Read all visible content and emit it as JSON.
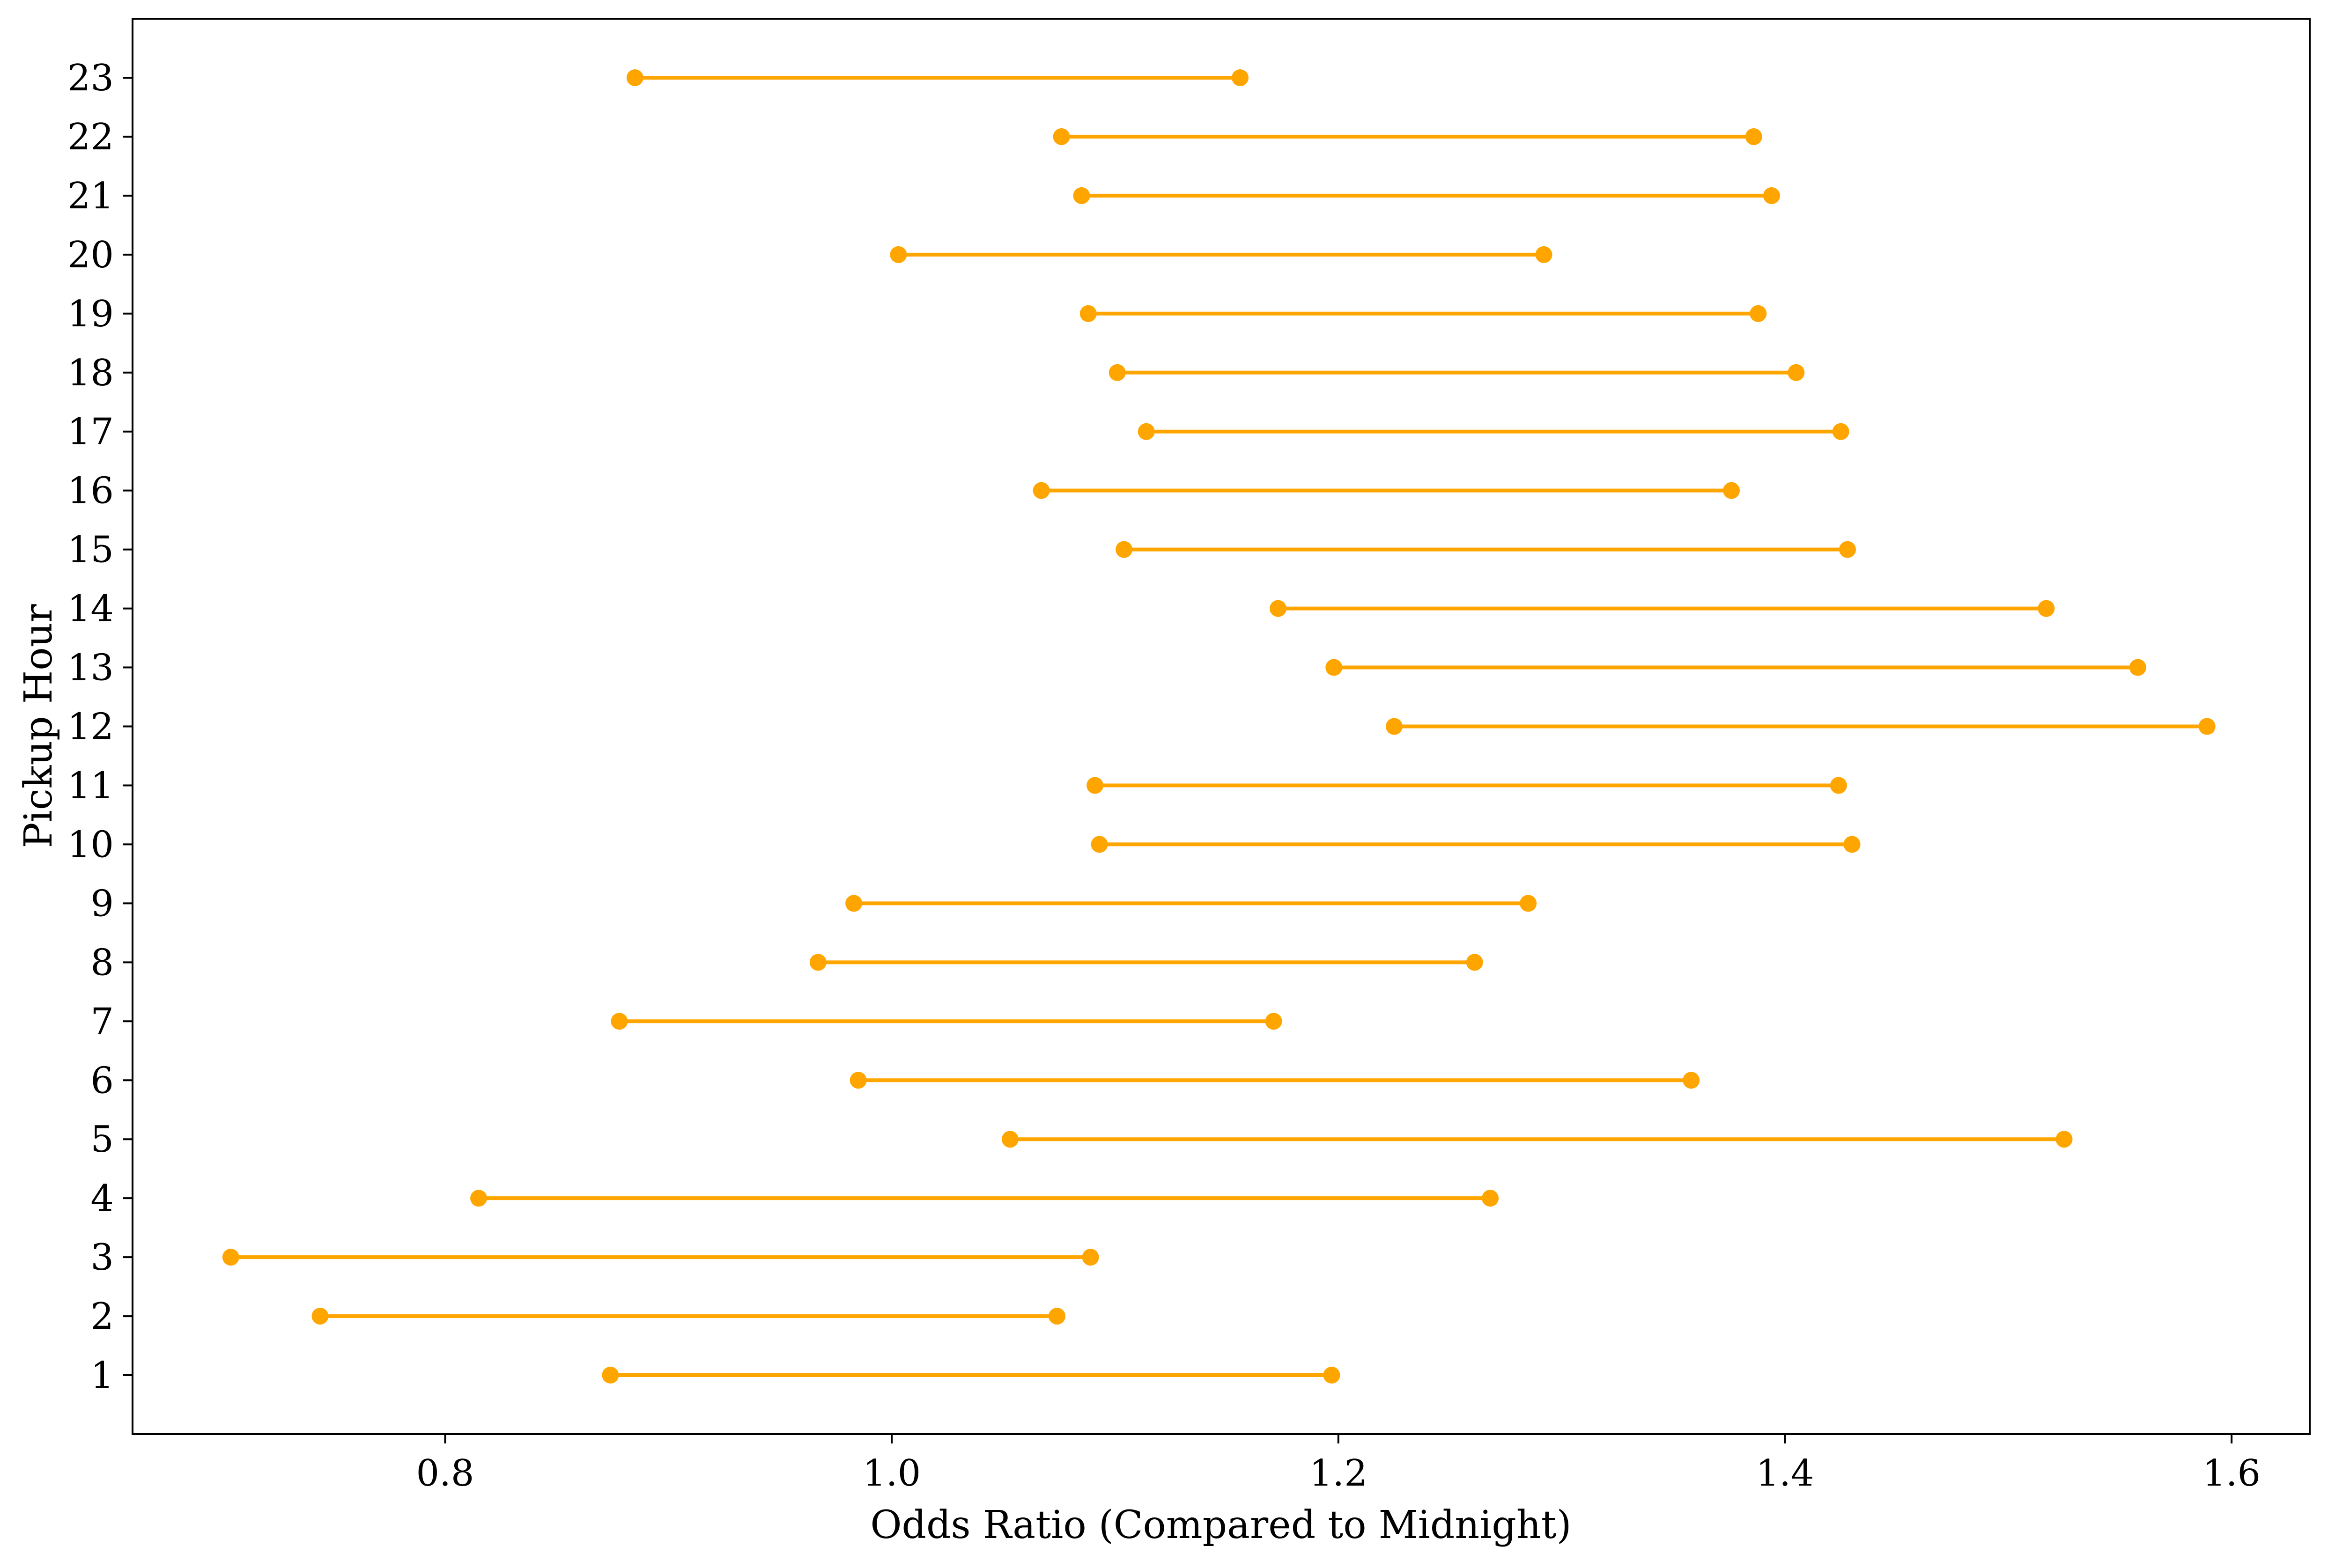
{
  "chart_data": {
    "type": "range-dot",
    "title": "",
    "xlabel": "Odds Ratio (Compared to Midnight)",
    "ylabel": "Pickup Hour",
    "xlim": [
      0.66,
      1.635
    ],
    "ylim": [
      0,
      24
    ],
    "xticks": [
      0.8,
      1.0,
      1.2,
      1.4,
      1.6
    ],
    "xtick_labels": [
      "0.8",
      "1.0",
      "1.2",
      "1.4",
      "1.6"
    ],
    "grid": false,
    "color": "#FFA500",
    "intervals": [
      {
        "hour": 1,
        "label": "1",
        "lower": 0.874,
        "upper": 1.197
      },
      {
        "hour": 2,
        "label": "2",
        "lower": 0.744,
        "upper": 1.074
      },
      {
        "hour": 3,
        "label": "3",
        "lower": 0.704,
        "upper": 1.089
      },
      {
        "hour": 4,
        "label": "4",
        "lower": 0.815,
        "upper": 1.268
      },
      {
        "hour": 5,
        "label": "5",
        "lower": 1.053,
        "upper": 1.525
      },
      {
        "hour": 6,
        "label": "6",
        "lower": 0.985,
        "upper": 1.358
      },
      {
        "hour": 7,
        "label": "7",
        "lower": 0.878,
        "upper": 1.171
      },
      {
        "hour": 8,
        "label": "8",
        "lower": 0.967,
        "upper": 1.261
      },
      {
        "hour": 9,
        "label": "9",
        "lower": 0.983,
        "upper": 1.285
      },
      {
        "hour": 10,
        "label": "10",
        "lower": 1.093,
        "upper": 1.43
      },
      {
        "hour": 11,
        "label": "11",
        "lower": 1.091,
        "upper": 1.424
      },
      {
        "hour": 12,
        "label": "12",
        "lower": 1.225,
        "upper": 1.589
      },
      {
        "hour": 13,
        "label": "13",
        "lower": 1.198,
        "upper": 1.558
      },
      {
        "hour": 14,
        "label": "14",
        "lower": 1.173,
        "upper": 1.517
      },
      {
        "hour": 15,
        "label": "15",
        "lower": 1.104,
        "upper": 1.428
      },
      {
        "hour": 16,
        "label": "16",
        "lower": 1.067,
        "upper": 1.376
      },
      {
        "hour": 17,
        "label": "17",
        "lower": 1.114,
        "upper": 1.425
      },
      {
        "hour": 18,
        "label": "18",
        "lower": 1.101,
        "upper": 1.405
      },
      {
        "hour": 19,
        "label": "19",
        "lower": 1.088,
        "upper": 1.388
      },
      {
        "hour": 20,
        "label": "20",
        "lower": 1.003,
        "upper": 1.292
      },
      {
        "hour": 21,
        "label": "21",
        "lower": 1.085,
        "upper": 1.394
      },
      {
        "hour": 22,
        "label": "22",
        "lower": 1.076,
        "upper": 1.386
      },
      {
        "hour": 23,
        "label": "23",
        "lower": 0.885,
        "upper": 1.156
      }
    ]
  }
}
